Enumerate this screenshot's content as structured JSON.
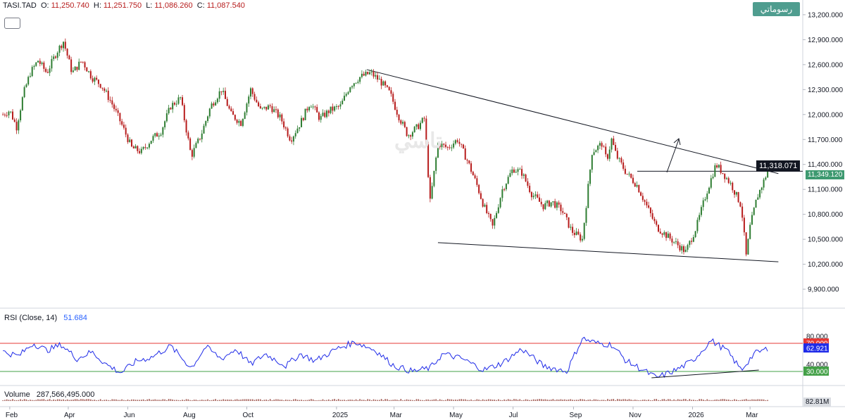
{
  "header": {
    "symbol": "TASI.TAD",
    "open_label": "O:",
    "open": "11,250.740",
    "high_label": "H:",
    "high": "11,251.750",
    "low_label": "L:",
    "low": "11,086.260",
    "close_label": "C:",
    "close": "11,087.540",
    "rtl_button": "رسوماتي",
    "watermark": "تاسي"
  },
  "colors": {
    "up": "#2e7d32",
    "down": "#b71c1c",
    "trend": "#131722",
    "rsi_line": "#1f2be8",
    "rsi_upper": "#e53935",
    "rsi_lower": "#43a047",
    "volume": "#a5615a",
    "last_price": "#3d9970"
  },
  "price_axis": {
    "ticks": [
      "13,200.000",
      "12,900.000",
      "12,600.000",
      "12,300.000",
      "12,000.000",
      "11,700.000",
      "11,400.000",
      "11,100.000",
      "10,800.000",
      "10,500.000",
      "10,200.000",
      "9,900.000"
    ],
    "crosshair_label": "11,318.071",
    "last_price_label": "11,349.120"
  },
  "rsi": {
    "title": "RSI",
    "params": "(Close, 14)",
    "value": "51.684",
    "ticks": [
      "80.000",
      "70.000",
      "62.921",
      "40.000",
      "30.000"
    ]
  },
  "volume": {
    "title": "Volume",
    "value": "287,566,495.000",
    "axis_label": "82.81M"
  },
  "time_axis": {
    "labels": [
      "Feb",
      "Apr",
      "Jun",
      "Aug",
      "Oct",
      "2025",
      "Mar",
      "May",
      "Jul",
      "Sep",
      "Nov",
      "2026",
      "Mar"
    ]
  },
  "chart_data": {
    "type": "candlestick",
    "symbol": "TASI.TAD",
    "ylim": [
      9850,
      13250
    ],
    "x_range": [
      "2024-02",
      "2026-03"
    ],
    "close_series": [
      {
        "date": "2024-01-25",
        "value": 12000
      },
      {
        "date": "2024-02-01",
        "value": 12050
      },
      {
        "date": "2024-02-08",
        "value": 11850
      },
      {
        "date": "2024-02-15",
        "value": 12250
      },
      {
        "date": "2024-02-22",
        "value": 12500
      },
      {
        "date": "2024-03-01",
        "value": 12650
      },
      {
        "date": "2024-03-10",
        "value": 12500
      },
      {
        "date": "2024-03-20",
        "value": 12750
      },
      {
        "date": "2024-03-27",
        "value": 12880
      },
      {
        "date": "2024-04-05",
        "value": 12500
      },
      {
        "date": "2024-04-15",
        "value": 12650
      },
      {
        "date": "2024-04-25",
        "value": 12450
      },
      {
        "date": "2024-05-05",
        "value": 12350
      },
      {
        "date": "2024-05-15",
        "value": 12150
      },
      {
        "date": "2024-05-25",
        "value": 11900
      },
      {
        "date": "2024-06-05",
        "value": 11600
      },
      {
        "date": "2024-06-15",
        "value": 11550
      },
      {
        "date": "2024-06-25",
        "value": 11700
      },
      {
        "date": "2024-07-05",
        "value": 11800
      },
      {
        "date": "2024-07-15",
        "value": 12100
      },
      {
        "date": "2024-07-25",
        "value": 12200
      },
      {
        "date": "2024-08-05",
        "value": 11500
      },
      {
        "date": "2024-08-15",
        "value": 11750
      },
      {
        "date": "2024-08-25",
        "value": 12100
      },
      {
        "date": "2024-09-05",
        "value": 12300
      },
      {
        "date": "2024-09-15",
        "value": 12000
      },
      {
        "date": "2024-09-25",
        "value": 11900
      },
      {
        "date": "2024-10-05",
        "value": 12300
      },
      {
        "date": "2024-10-15",
        "value": 12050
      },
      {
        "date": "2024-10-25",
        "value": 12100
      },
      {
        "date": "2024-11-05",
        "value": 11950
      },
      {
        "date": "2024-11-15",
        "value": 11700
      },
      {
        "date": "2024-11-25",
        "value": 11900
      },
      {
        "date": "2024-12-05",
        "value": 12150
      },
      {
        "date": "2024-12-15",
        "value": 11950
      },
      {
        "date": "2024-12-25",
        "value": 12050
      },
      {
        "date": "2025-01-05",
        "value": 12100
      },
      {
        "date": "2025-01-15",
        "value": 12350
      },
      {
        "date": "2025-01-25",
        "value": 12450
      },
      {
        "date": "2025-02-05",
        "value": 12500
      },
      {
        "date": "2025-02-15",
        "value": 12400
      },
      {
        "date": "2025-02-25",
        "value": 12250
      },
      {
        "date": "2025-03-05",
        "value": 12000
      },
      {
        "date": "2025-03-15",
        "value": 11750
      },
      {
        "date": "2025-03-25",
        "value": 11850
      },
      {
        "date": "2025-04-01",
        "value": 11950
      },
      {
        "date": "2025-04-07",
        "value": 10950
      },
      {
        "date": "2025-04-15",
        "value": 11650
      },
      {
        "date": "2025-04-25",
        "value": 11600
      },
      {
        "date": "2025-05-05",
        "value": 11700
      },
      {
        "date": "2025-05-15",
        "value": 11450
      },
      {
        "date": "2025-05-25",
        "value": 11150
      },
      {
        "date": "2025-06-01",
        "value": 10900
      },
      {
        "date": "2025-06-10",
        "value": 10650
      },
      {
        "date": "2025-06-20",
        "value": 11100
      },
      {
        "date": "2025-07-01",
        "value": 11350
      },
      {
        "date": "2025-07-10",
        "value": 11300
      },
      {
        "date": "2025-07-20",
        "value": 11050
      },
      {
        "date": "2025-08-01",
        "value": 10900
      },
      {
        "date": "2025-08-10",
        "value": 10950
      },
      {
        "date": "2025-08-20",
        "value": 10850
      },
      {
        "date": "2025-08-30",
        "value": 10600
      },
      {
        "date": "2025-09-10",
        "value": 10500
      },
      {
        "date": "2025-09-20",
        "value": 11550
      },
      {
        "date": "2025-09-30",
        "value": 11650
      },
      {
        "date": "2025-10-05",
        "value": 11450
      },
      {
        "date": "2025-10-10",
        "value": 11700
      },
      {
        "date": "2025-10-15",
        "value": 11500
      },
      {
        "date": "2025-10-25",
        "value": 11300
      },
      {
        "date": "2025-11-05",
        "value": 11150
      },
      {
        "date": "2025-11-15",
        "value": 10900
      },
      {
        "date": "2025-11-25",
        "value": 10650
      },
      {
        "date": "2025-12-05",
        "value": 10550
      },
      {
        "date": "2025-12-15",
        "value": 10450
      },
      {
        "date": "2025-12-25",
        "value": 10350
      },
      {
        "date": "2026-01-05",
        "value": 10650
      },
      {
        "date": "2026-01-15",
        "value": 11050
      },
      {
        "date": "2026-01-25",
        "value": 11400
      },
      {
        "date": "2026-02-01",
        "value": 11300
      },
      {
        "date": "2026-02-10",
        "value": 11150
      },
      {
        "date": "2026-02-20",
        "value": 10900
      },
      {
        "date": "2026-02-25",
        "value": 10300
      },
      {
        "date": "2026-03-01",
        "value": 10650
      },
      {
        "date": "2026-03-08",
        "value": 11000
      },
      {
        "date": "2026-03-15",
        "value": 11200
      },
      {
        "date": "2026-03-20",
        "value": 11349
      }
    ],
    "trendlines": [
      {
        "name": "upper resistance",
        "from": {
          "date": "2025-02-01",
          "value": 12540
        },
        "to": {
          "date": "2026-03-30",
          "value": 11290
        }
      },
      {
        "name": "lower support",
        "from": {
          "date": "2025-04-15",
          "value": 10460
        },
        "to": {
          "date": "2026-03-30",
          "value": 10230
        }
      },
      {
        "name": "rsi support",
        "from": {
          "date": "2025-11-20",
          "value": 21
        },
        "to": {
          "date": "2026-03-10",
          "value": 32
        }
      }
    ],
    "crosshair_price": 11318.071,
    "last_price": 11349.12,
    "rsi": {
      "period": 14,
      "last": 51.684,
      "levels": [
        70,
        30
      ],
      "ylim": [
        18,
        88
      ],
      "series": [
        {
          "date": "2024-01-25",
          "value": 58
        },
        {
          "date": "2024-02-10",
          "value": 52
        },
        {
          "date": "2024-02-25",
          "value": 70
        },
        {
          "date": "2024-03-10",
          "value": 60
        },
        {
          "date": "2024-03-25",
          "value": 68
        },
        {
          "date": "2024-04-10",
          "value": 48
        },
        {
          "date": "2024-04-25",
          "value": 58
        },
        {
          "date": "2024-05-10",
          "value": 40
        },
        {
          "date": "2024-05-25",
          "value": 28
        },
        {
          "date": "2024-06-10",
          "value": 45
        },
        {
          "date": "2024-06-25",
          "value": 50
        },
        {
          "date": "2024-07-15",
          "value": 66
        },
        {
          "date": "2024-08-05",
          "value": 35
        },
        {
          "date": "2024-08-20",
          "value": 65
        },
        {
          "date": "2024-09-05",
          "value": 48
        },
        {
          "date": "2024-09-20",
          "value": 62
        },
        {
          "date": "2024-10-05",
          "value": 40
        },
        {
          "date": "2024-10-20",
          "value": 55
        },
        {
          "date": "2024-11-10",
          "value": 38
        },
        {
          "date": "2024-11-25",
          "value": 55
        },
        {
          "date": "2024-12-10",
          "value": 45
        },
        {
          "date": "2025-01-01",
          "value": 62
        },
        {
          "date": "2025-01-20",
          "value": 72
        },
        {
          "date": "2025-02-10",
          "value": 60
        },
        {
          "date": "2025-03-01",
          "value": 38
        },
        {
          "date": "2025-03-20",
          "value": 30
        },
        {
          "date": "2025-04-07",
          "value": 35
        },
        {
          "date": "2025-04-20",
          "value": 55
        },
        {
          "date": "2025-05-10",
          "value": 48
        },
        {
          "date": "2025-06-01",
          "value": 32
        },
        {
          "date": "2025-06-20",
          "value": 42
        },
        {
          "date": "2025-07-10",
          "value": 62
        },
        {
          "date": "2025-08-01",
          "value": 38
        },
        {
          "date": "2025-08-25",
          "value": 30
        },
        {
          "date": "2025-09-10",
          "value": 77
        },
        {
          "date": "2025-09-25",
          "value": 70
        },
        {
          "date": "2025-10-10",
          "value": 68
        },
        {
          "date": "2025-10-25",
          "value": 45
        },
        {
          "date": "2025-11-10",
          "value": 33
        },
        {
          "date": "2025-11-25",
          "value": 21
        },
        {
          "date": "2025-12-15",
          "value": 32
        },
        {
          "date": "2026-01-01",
          "value": 45
        },
        {
          "date": "2026-01-20",
          "value": 74
        },
        {
          "date": "2026-02-05",
          "value": 60
        },
        {
          "date": "2026-02-20",
          "value": 32
        },
        {
          "date": "2026-03-05",
          "value": 55
        },
        {
          "date": "2026-03-20",
          "value": 63
        }
      ]
    }
  }
}
